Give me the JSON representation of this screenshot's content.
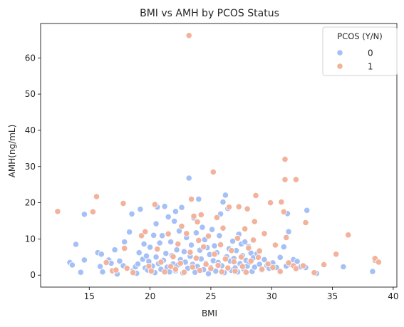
{
  "chart_data": {
    "type": "scatter",
    "title": "BMI vs AMH by PCOS Status",
    "xlabel": "BMI",
    "ylabel": "AMH(ng/mL)",
    "xlim": [
      11.0,
      40.3
    ],
    "ylim": [
      -3.3,
      69.5
    ],
    "xticks": [
      15,
      20,
      25,
      30,
      35,
      40
    ],
    "yticks": [
      0,
      10,
      20,
      30,
      40,
      50,
      60
    ],
    "grid": false,
    "legend": {
      "title": "PCOS (Y/N)",
      "placement": "top-right"
    },
    "series": [
      {
        "name": "0",
        "color": "#a5c0f6",
        "points": [
          [
            13.4,
            3.5
          ],
          [
            13.6,
            2.8
          ],
          [
            13.9,
            8.5
          ],
          [
            14.3,
            0.8
          ],
          [
            14.6,
            4.2
          ],
          [
            14.6,
            16.8
          ],
          [
            15.7,
            6.2
          ],
          [
            15.9,
            2.4
          ],
          [
            16.0,
            5.8
          ],
          [
            16.1,
            0.9
          ],
          [
            16.6,
            4.2
          ],
          [
            16.8,
            3.3
          ],
          [
            17.1,
            7.0
          ],
          [
            17.3,
            0.3
          ],
          [
            17.5,
            3.9
          ],
          [
            17.8,
            2.6
          ],
          [
            17.9,
            9.2
          ],
          [
            18.1,
            1.8
          ],
          [
            18.3,
            11.9
          ],
          [
            18.5,
            16.9
          ],
          [
            18.6,
            1.2
          ],
          [
            18.8,
            2.3
          ],
          [
            18.9,
            0.5
          ],
          [
            19.0,
            3.1
          ],
          [
            19.1,
            6.2
          ],
          [
            19.2,
            18.2
          ],
          [
            19.4,
            4.4
          ],
          [
            19.5,
            8.6
          ],
          [
            19.6,
            2.0
          ],
          [
            19.7,
            5.3
          ],
          [
            19.8,
            1.4
          ],
          [
            19.9,
            3.8
          ],
          [
            20.0,
            7.7
          ],
          [
            20.2,
            2.5
          ],
          [
            20.3,
            11.0
          ],
          [
            20.4,
            0.7
          ],
          [
            20.5,
            14.2
          ],
          [
            20.5,
            5.0
          ],
          [
            20.6,
            18.8
          ],
          [
            20.7,
            3.2
          ],
          [
            20.8,
            8.9
          ],
          [
            20.9,
            1.6
          ],
          [
            21.0,
            10.9
          ],
          [
            21.1,
            4.1
          ],
          [
            21.2,
            19.0
          ],
          [
            21.3,
            6.0
          ],
          [
            21.4,
            2.2
          ],
          [
            21.5,
            16.1
          ],
          [
            21.6,
            0.9
          ],
          [
            21.7,
            9.2
          ],
          [
            21.8,
            5.4
          ],
          [
            21.9,
            3.1
          ],
          [
            22.0,
            14.9
          ],
          [
            22.1,
            17.6
          ],
          [
            22.1,
            1.2
          ],
          [
            22.2,
            7.0
          ],
          [
            22.3,
            2.8
          ],
          [
            22.4,
            12.2
          ],
          [
            22.5,
            4.3
          ],
          [
            22.6,
            18.7
          ],
          [
            22.7,
            0.6
          ],
          [
            22.8,
            6.5
          ],
          [
            22.9,
            3.6
          ],
          [
            23.0,
            10.4
          ],
          [
            23.1,
            1.9
          ],
          [
            23.2,
            26.8
          ],
          [
            23.3,
            5.2
          ],
          [
            23.4,
            8.3
          ],
          [
            23.5,
            3.0
          ],
          [
            23.6,
            15.8
          ],
          [
            23.7,
            0.8
          ],
          [
            23.8,
            11.7
          ],
          [
            23.9,
            2.4
          ],
          [
            24.0,
            21.0
          ],
          [
            24.1,
            6.9
          ],
          [
            24.2,
            4.5
          ],
          [
            24.3,
            13.2
          ],
          [
            24.4,
            1.5
          ],
          [
            24.5,
            9.8
          ],
          [
            24.6,
            3.3
          ],
          [
            24.7,
            7.6
          ],
          [
            24.8,
            0.4
          ],
          [
            24.9,
            5.7
          ],
          [
            25.0,
            2.1
          ],
          [
            25.1,
            12.6
          ],
          [
            25.2,
            4.0
          ],
          [
            25.3,
            8.1
          ],
          [
            25.4,
            1.1
          ],
          [
            25.5,
            6.2
          ],
          [
            25.6,
            3.5
          ],
          [
            25.7,
            10.9
          ],
          [
            25.8,
            16.9
          ],
          [
            25.9,
            2.6
          ],
          [
            26.0,
            20.2
          ],
          [
            26.1,
            0.7
          ],
          [
            26.2,
            22.1
          ],
          [
            26.3,
            5.1
          ],
          [
            26.4,
            18.4
          ],
          [
            26.5,
            7.3
          ],
          [
            26.6,
            3.9
          ],
          [
            26.7,
            1.3
          ],
          [
            26.8,
            9.4
          ],
          [
            26.9,
            4.6
          ],
          [
            27.0,
            2.0
          ],
          [
            27.1,
            6.8
          ],
          [
            27.2,
            0.9
          ],
          [
            27.3,
            11.3
          ],
          [
            27.4,
            3.2
          ],
          [
            27.5,
            8.6
          ],
          [
            27.6,
            5.4
          ],
          [
            27.7,
            1.7
          ],
          [
            27.8,
            9.2
          ],
          [
            27.9,
            4.1
          ],
          [
            28.0,
            2.5
          ],
          [
            28.1,
            7.9
          ],
          [
            28.2,
            3.6
          ],
          [
            28.3,
            6.1
          ],
          [
            28.4,
            1.0
          ],
          [
            28.5,
            4.8
          ],
          [
            28.6,
            2.2
          ],
          [
            28.8,
            5.9
          ],
          [
            29.0,
            3.0
          ],
          [
            29.2,
            1.4
          ],
          [
            29.4,
            4.3
          ],
          [
            29.6,
            2.7
          ],
          [
            29.8,
            1.9
          ],
          [
            30.1,
            3.4
          ],
          [
            30.4,
            2.1
          ],
          [
            30.7,
            4.9
          ],
          [
            31.0,
            7.8
          ],
          [
            31.2,
            2.5
          ],
          [
            31.3,
            17.0
          ],
          [
            31.4,
            12.0
          ],
          [
            31.6,
            2.9
          ],
          [
            31.8,
            4.3
          ],
          [
            32.1,
            3.8
          ],
          [
            32.4,
            2.3
          ],
          [
            32.8,
            2.1
          ],
          [
            32.9,
            17.9
          ],
          [
            33.7,
            0.5
          ],
          [
            35.9,
            2.3
          ],
          [
            38.3,
            1.0
          ]
        ]
      },
      {
        "name": "1",
        "color": "#f2b29b",
        "points": [
          [
            12.4,
            17.6
          ],
          [
            15.3,
            17.5
          ],
          [
            15.6,
            21.7
          ],
          [
            16.4,
            3.5
          ],
          [
            16.9,
            1.2
          ],
          [
            17.2,
            1.4
          ],
          [
            17.8,
            19.8
          ],
          [
            17.9,
            7.4
          ],
          [
            18.1,
            1.9
          ],
          [
            18.6,
            0.7
          ],
          [
            19.3,
            10.9
          ],
          [
            19.6,
            12.0
          ],
          [
            19.9,
            2.5
          ],
          [
            20.1,
            1.1
          ],
          [
            20.4,
            19.5
          ],
          [
            20.6,
            7.2
          ],
          [
            20.9,
            3.6
          ],
          [
            21.2,
            0.9
          ],
          [
            21.5,
            11.4
          ],
          [
            21.7,
            2.4
          ],
          [
            21.9,
            5.1
          ],
          [
            22.1,
            1.6
          ],
          [
            22.3,
            8.6
          ],
          [
            22.5,
            3.3
          ],
          [
            22.6,
            13.5
          ],
          [
            22.8,
            0.8
          ],
          [
            23.0,
            11.5
          ],
          [
            23.2,
            66.2
          ],
          [
            23.3,
            6.3
          ],
          [
            23.4,
            21.0
          ],
          [
            23.5,
            2.2
          ],
          [
            23.6,
            16.3
          ],
          [
            23.8,
            4.7
          ],
          [
            23.9,
            14.7
          ],
          [
            24.0,
            9.6
          ],
          [
            24.1,
            1.3
          ],
          [
            24.2,
            16.7
          ],
          [
            24.4,
            7.8
          ],
          [
            24.6,
            3.0
          ],
          [
            24.8,
            10.8
          ],
          [
            25.0,
            1.8
          ],
          [
            25.2,
            28.5
          ],
          [
            25.3,
            5.8
          ],
          [
            25.5,
            15.9
          ],
          [
            25.6,
            2.7
          ],
          [
            25.8,
            8.4
          ],
          [
            25.9,
            0.9
          ],
          [
            26.0,
            13.0
          ],
          [
            26.2,
            4.5
          ],
          [
            26.4,
            2.0
          ],
          [
            26.5,
            18.8
          ],
          [
            26.7,
            6.8
          ],
          [
            26.9,
            3.7
          ],
          [
            27.0,
            1.1
          ],
          [
            27.2,
            10.2
          ],
          [
            27.3,
            18.9
          ],
          [
            27.5,
            5.0
          ],
          [
            27.6,
            2.4
          ],
          [
            27.8,
            12.8
          ],
          [
            27.9,
            0.8
          ],
          [
            28.0,
            18.3
          ],
          [
            28.1,
            7.5
          ],
          [
            28.3,
            3.9
          ],
          [
            28.5,
            9.7
          ],
          [
            28.6,
            14.8
          ],
          [
            28.7,
            22.0
          ],
          [
            28.9,
            4.9
          ],
          [
            29.0,
            6.7
          ],
          [
            29.2,
            1.6
          ],
          [
            29.4,
            11.5
          ],
          [
            29.7,
            3.1
          ],
          [
            29.9,
            20.0
          ],
          [
            30.1,
            2.1
          ],
          [
            30.3,
            8.3
          ],
          [
            30.7,
            1.0
          ],
          [
            30.8,
            20.2
          ],
          [
            31.0,
            17.5
          ],
          [
            31.1,
            26.4
          ],
          [
            31.1,
            32.0
          ],
          [
            31.2,
            10.4
          ],
          [
            31.4,
            3.4
          ],
          [
            31.8,
            2.6
          ],
          [
            32.0,
            26.4
          ],
          [
            32.0,
            1.8
          ],
          [
            32.6,
            2.6
          ],
          [
            32.8,
            14.5
          ],
          [
            33.5,
            0.7
          ],
          [
            34.3,
            2.9
          ],
          [
            35.3,
            5.8
          ],
          [
            36.3,
            11.1
          ],
          [
            38.5,
            4.1
          ],
          [
            38.5,
            4.6
          ],
          [
            38.8,
            3.6
          ]
        ]
      }
    ]
  }
}
